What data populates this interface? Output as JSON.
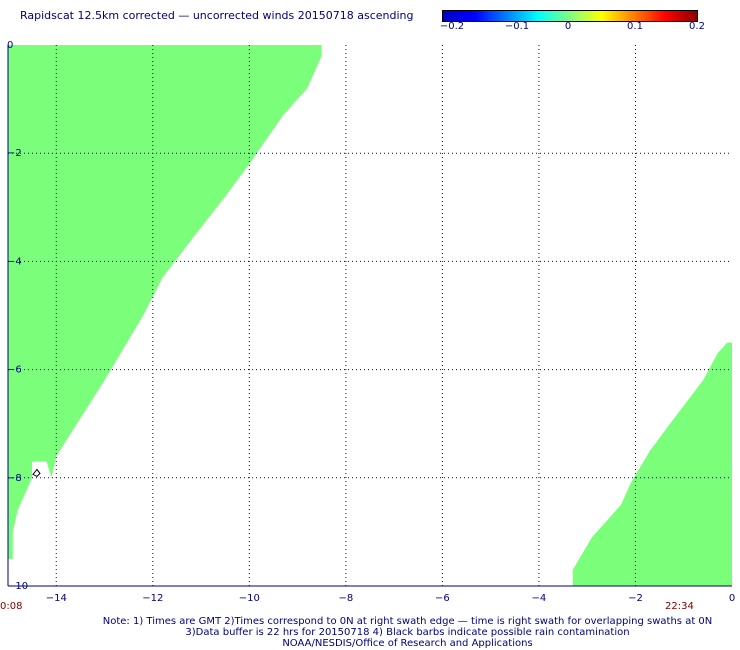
{
  "title": "Rapidscat 12.5km corrected — uncorrected winds 20150718 ascending",
  "colorbar": {
    "ticks": [
      "−0.2",
      "−0.1",
      "0",
      "0.1",
      "0.2"
    ],
    "colors": [
      "#0000c8",
      "#0000ff",
      "#0080ff",
      "#00ffff",
      "#80ff80",
      "#ffff00",
      "#ff8000",
      "#ff0000",
      "#8b0000"
    ]
  },
  "axes": {
    "x_ticks": [
      "−14",
      "−12",
      "−10",
      "−8",
      "−6",
      "−4",
      "−2",
      "0"
    ],
    "y_ticks": [
      "0",
      "−2",
      "−4",
      "−6",
      "−8",
      "−10"
    ]
  },
  "times": {
    "left": "0:08",
    "right": "22:34"
  },
  "notes": {
    "line1": "Note: 1) Times are GMT 2)Times correspond to 0N at right swath edge — time is right swath for overlapping swaths at 0N",
    "line2": "3)Data buffer is 22 hrs for 20150718 4) Black barbs indicate possible rain contamination",
    "line3": "NOAA/NESDIS/Office of Research and Applications"
  },
  "swath_color": "#7bff7b",
  "map": {
    "lon_range": [
      -15,
      0
    ],
    "lat_range": [
      -10,
      0
    ],
    "swaths": [
      {
        "name": "left-swath",
        "outline": [
          [
            -15,
            0
          ],
          [
            -8.5,
            0
          ],
          [
            -8.5,
            -0.2
          ],
          [
            -8.8,
            -0.8
          ],
          [
            -9.3,
            -1.3
          ],
          [
            -10,
            -2.2
          ],
          [
            -10.5,
            -2.8
          ],
          [
            -11.2,
            -3.6
          ],
          [
            -11.8,
            -4.3
          ],
          [
            -12.2,
            -5
          ],
          [
            -12.6,
            -5.6
          ],
          [
            -13,
            -6.2
          ],
          [
            -13.5,
            -6.9
          ],
          [
            -14,
            -7.6
          ],
          [
            -14.1,
            -8
          ],
          [
            -14.4,
            -8
          ],
          [
            -14.5,
            -8
          ],
          [
            -14.8,
            -8.6
          ],
          [
            -14.9,
            -9
          ],
          [
            -14.9,
            -9.5
          ],
          [
            -15,
            -9.5
          ]
        ]
      },
      {
        "name": "right-swath",
        "outline": [
          [
            0,
            -5.5
          ],
          [
            0,
            -10
          ],
          [
            -3.3,
            -10
          ],
          [
            -3.3,
            -9.7
          ],
          [
            -2.9,
            -9.1
          ],
          [
            -2.3,
            -8.5
          ],
          [
            -2.1,
            -8.1
          ],
          [
            -1.7,
            -7.5
          ],
          [
            -1.2,
            -6.9
          ],
          [
            -0.6,
            -6.2
          ],
          [
            -0.3,
            -5.7
          ],
          [
            -0.1,
            -5.5
          ]
        ]
      }
    ],
    "gap": {
      "name": "data-gap",
      "outline": [
        [
          -14.5,
          -7.7
        ],
        [
          -14.2,
          -7.7
        ],
        [
          -14.1,
          -8
        ],
        [
          -14.5,
          -8
        ]
      ]
    },
    "barb": {
      "name": "rain-barb",
      "lon": -14.4,
      "lat": -7.9
    }
  }
}
